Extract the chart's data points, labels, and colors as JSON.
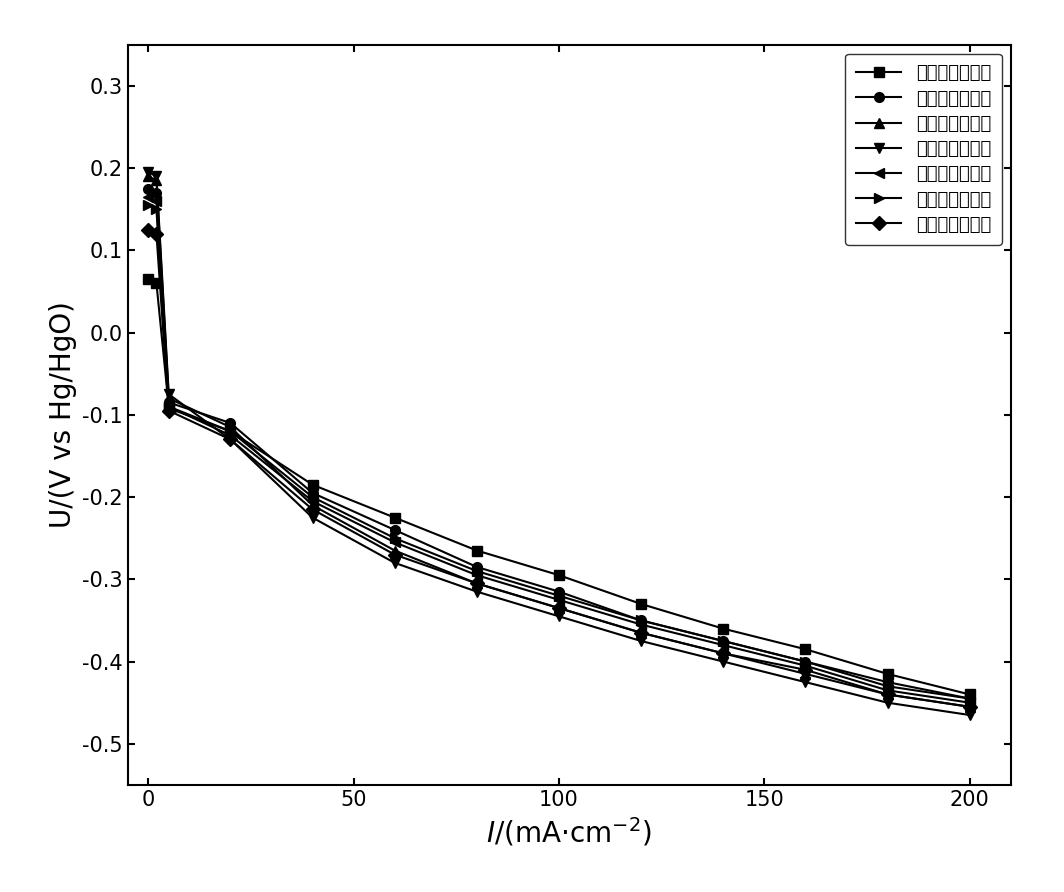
{
  "series": [
    {
      "label": "第一次阴极极化",
      "marker": "s",
      "x": [
        0,
        2,
        5,
        20,
        40,
        60,
        80,
        100,
        120,
        140,
        160,
        180,
        200
      ],
      "y": [
        0.065,
        0.06,
        -0.09,
        -0.12,
        -0.185,
        -0.225,
        -0.265,
        -0.295,
        -0.33,
        -0.36,
        -0.385,
        -0.415,
        -0.44
      ]
    },
    {
      "label": "第二次阴极极化",
      "marker": "o",
      "x": [
        0,
        2,
        5,
        20,
        40,
        60,
        80,
        100,
        120,
        140,
        160,
        180,
        200
      ],
      "y": [
        0.175,
        0.17,
        -0.085,
        -0.11,
        -0.195,
        -0.24,
        -0.285,
        -0.315,
        -0.35,
        -0.375,
        -0.4,
        -0.425,
        -0.445
      ]
    },
    {
      "label": "第三次阴极极化",
      "marker": "^",
      "x": [
        0,
        2,
        5,
        20,
        40,
        60,
        80,
        100,
        120,
        140,
        160,
        180,
        200
      ],
      "y": [
        0.19,
        0.185,
        -0.08,
        -0.115,
        -0.21,
        -0.265,
        -0.305,
        -0.335,
        -0.365,
        -0.39,
        -0.415,
        -0.44,
        -0.455
      ]
    },
    {
      "label": "第四次阴极极化",
      "marker": "v",
      "x": [
        0,
        2,
        5,
        20,
        40,
        60,
        80,
        100,
        120,
        140,
        160,
        180,
        200
      ],
      "y": [
        0.195,
        0.19,
        -0.075,
        -0.13,
        -0.225,
        -0.28,
        -0.315,
        -0.345,
        -0.375,
        -0.4,
        -0.425,
        -0.45,
        -0.465
      ]
    },
    {
      "label": "第五次阴极极化",
      "marker": "<",
      "x": [
        0,
        2,
        5,
        20,
        40,
        60,
        80,
        100,
        120,
        140,
        160,
        180,
        200
      ],
      "y": [
        0.165,
        0.16,
        -0.09,
        -0.125,
        -0.205,
        -0.255,
        -0.295,
        -0.325,
        -0.355,
        -0.38,
        -0.405,
        -0.435,
        -0.45
      ]
    },
    {
      "label": "第六次阴极极化",
      "marker": ">",
      "x": [
        0,
        2,
        5,
        20,
        40,
        60,
        80,
        100,
        120,
        140,
        160,
        180,
        200
      ],
      "y": [
        0.155,
        0.15,
        -0.092,
        -0.12,
        -0.2,
        -0.25,
        -0.29,
        -0.32,
        -0.35,
        -0.375,
        -0.4,
        -0.43,
        -0.445
      ]
    },
    {
      "label": "第七次阴极极化",
      "marker": "D",
      "x": [
        0,
        2,
        5,
        20,
        40,
        60,
        80,
        100,
        120,
        140,
        160,
        180,
        200
      ],
      "y": [
        0.125,
        0.12,
        -0.095,
        -0.13,
        -0.215,
        -0.27,
        -0.305,
        -0.335,
        -0.365,
        -0.39,
        -0.41,
        -0.44,
        -0.455
      ]
    }
  ],
  "xlabel_italic": "I",
  "xlabel_rest": "/(mA·cm",
  "xlabel_sup": "-2",
  "xlabel_end": ")",
  "ylabel": "U/(V vs Hg/HgO)",
  "xlim": [
    -5,
    210
  ],
  "ylim": [
    -0.55,
    0.35
  ],
  "yticks": [
    -0.5,
    -0.4,
    -0.3,
    -0.2,
    -0.1,
    0.0,
    0.1,
    0.2,
    0.3
  ],
  "xticks": [
    0,
    50,
    100,
    150,
    200
  ],
  "color": "#000000",
  "linewidth": 1.5,
  "markersize": 7,
  "legend_fontsize": 13,
  "axis_fontsize": 20,
  "tick_fontsize": 15,
  "background_color": "#ffffff"
}
